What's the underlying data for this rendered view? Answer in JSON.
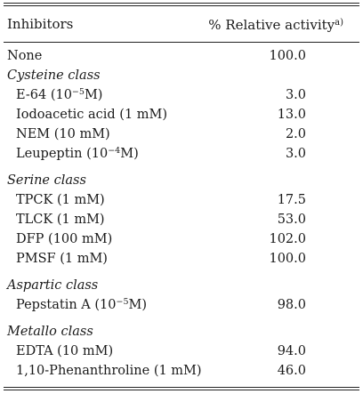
{
  "header": {
    "col_inhibitors": "Inhibitors",
    "col_activity": "% Relative activity",
    "col_activity_note": "a)"
  },
  "rows": {
    "none": {
      "name": "None",
      "value": "100.0"
    },
    "cysteine": {
      "label": "Cysteine class",
      "e64": {
        "name_pre": "E-64 (10",
        "exp": "−5",
        "name_post": "M)",
        "value": "3.0"
      },
      "iodoacetic": {
        "name": "Iodoacetic acid (1 mM)",
        "value": "13.0"
      },
      "nem": {
        "name": "NEM (10 mM)",
        "value": "2.0"
      },
      "leupeptin": {
        "name_pre": "Leupeptin (10",
        "exp": "−4",
        "name_post": "M)",
        "value": "3.0"
      }
    },
    "serine": {
      "label": "Serine class",
      "tpck": {
        "name": "TPCK (1 mM)",
        "value": "17.5"
      },
      "tlck": {
        "name": "TLCK (1 mM)",
        "value": "53.0"
      },
      "dfp": {
        "name": "DFP (100 mM)",
        "value": "102.0"
      },
      "pmsf": {
        "name": "PMSF (1 mM)",
        "value": "100.0"
      }
    },
    "aspartic": {
      "label": "Aspartic class",
      "pepstatin": {
        "name_pre": "Pepstatin A (10",
        "exp": "−5",
        "name_post": "M)",
        "value": "98.0"
      }
    },
    "metallo": {
      "label": "Metallo class",
      "edta": {
        "name": "EDTA (10 mM)",
        "value": "94.0"
      },
      "phenanthroline": {
        "name": "1,10-Phenanthroline (1 mM)",
        "value": "46.0"
      }
    }
  }
}
